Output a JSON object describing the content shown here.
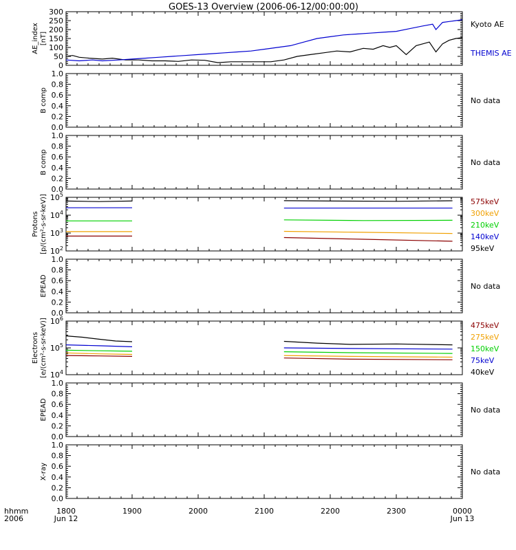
{
  "title": "GOES-13 Overview (2006-06-12/00:00:00)",
  "colors": {
    "black": "#000000",
    "blue": "#0000d0",
    "green": "#00d000",
    "orange": "#f0a000",
    "darkred": "#8b0000"
  },
  "time_axis": {
    "ticks": [
      {
        "top": "1800",
        "bottom": "Jun 12",
        "hours": 0
      },
      {
        "top": "1900",
        "bottom": "",
        "hours": 1
      },
      {
        "top": "2000",
        "bottom": "",
        "hours": 2
      },
      {
        "top": "2100",
        "bottom": "",
        "hours": 3
      },
      {
        "top": "2200",
        "bottom": "",
        "hours": 4
      },
      {
        "top": "2300",
        "bottom": "",
        "hours": 5
      },
      {
        "top": "0000",
        "bottom": "Jun 13",
        "hours": 6
      }
    ],
    "left_label_top": "hhmm",
    "left_label_bottom": "2006"
  },
  "chart_data": [
    {
      "type": "line",
      "ylabel": "AE_index [nT]",
      "ylabel_lines": [
        "AE_index",
        "[nT]"
      ],
      "ylim": [
        0,
        300
      ],
      "yticks": [
        0,
        50,
        100,
        150,
        200,
        250,
        300
      ],
      "legend": [
        "Kyoto AE",
        "THEMIS AE"
      ],
      "legend_colors": [
        "black",
        "blue"
      ],
      "series": [
        {
          "name": "Kyoto AE",
          "color": "black",
          "x": [
            0,
            0.1,
            0.2,
            0.35,
            0.55,
            0.7,
            0.9,
            1.1,
            1.3,
            1.5,
            1.7,
            1.9,
            2.1,
            2.3,
            2.5,
            2.7,
            2.9,
            3.1,
            3.3,
            3.5,
            3.7,
            3.9,
            4.1,
            4.3,
            4.5,
            4.65,
            4.8,
            4.9,
            5.0,
            5.15,
            5.3,
            5.4,
            5.5,
            5.6,
            5.7,
            5.8,
            5.9,
            6.0
          ],
          "y": [
            50,
            55,
            45,
            40,
            35,
            40,
            30,
            30,
            25,
            25,
            22,
            30,
            28,
            15,
            20,
            20,
            20,
            20,
            30,
            50,
            60,
            70,
            80,
            75,
            95,
            90,
            110,
            100,
            110,
            60,
            110,
            120,
            130,
            75,
            120,
            140,
            150,
            155
          ]
        },
        {
          "name": "THEMIS AE",
          "color": "blue",
          "x": [
            0,
            0.2,
            0.4,
            0.55,
            0.8,
            1.0,
            1.2,
            1.4,
            1.6,
            1.8,
            2.0,
            2.2,
            2.4,
            2.6,
            2.8,
            3.0,
            3.2,
            3.4,
            3.6,
            3.8,
            4.0,
            4.2,
            4.4,
            4.6,
            4.8,
            5.0,
            5.2,
            5.4,
            5.55,
            5.6,
            5.7,
            5.8,
            5.9,
            6.0
          ],
          "y": [
            30,
            25,
            30,
            25,
            30,
            35,
            40,
            45,
            50,
            55,
            60,
            65,
            70,
            75,
            80,
            90,
            100,
            110,
            130,
            150,
            160,
            170,
            175,
            180,
            185,
            190,
            205,
            220,
            230,
            200,
            240,
            245,
            250,
            255
          ]
        }
      ]
    },
    {
      "type": "line",
      "ylabel": "B comp",
      "ylabel_lines": [
        "B comp"
      ],
      "ylim": [
        0,
        1
      ],
      "yticks": [
        0.0,
        0.2,
        0.4,
        0.6,
        0.8,
        1.0
      ],
      "note": "No data",
      "series": []
    },
    {
      "type": "line",
      "ylabel": "B comp",
      "ylabel_lines": [
        "B comp"
      ],
      "ylim": [
        0,
        1
      ],
      "yticks": [
        0.0,
        0.2,
        0.4,
        0.6,
        0.8,
        1.0
      ],
      "note": "No data",
      "series": []
    },
    {
      "type": "line",
      "log": true,
      "ylabel": "Protons [p/(cm²-s-sr-keV)]",
      "ylabel_lines": [
        "Protons",
        "[p/(cm²-s-sr-keV)]"
      ],
      "ylim": [
        100,
        100000
      ],
      "ytick_labels": [
        {
          "value": 100,
          "base": "10",
          "exp": "2"
        },
        {
          "value": 1000,
          "base": "10",
          "exp": "3"
        },
        {
          "value": 10000,
          "base": "10",
          "exp": "4"
        },
        {
          "value": 100000,
          "base": "10",
          "exp": "5"
        }
      ],
      "legend": [
        "575keV",
        "300keV",
        "210keV",
        "140keV",
        "95keV"
      ],
      "legend_colors": [
        "darkred",
        "orange",
        "green",
        "blue",
        "black"
      ],
      "series": [
        {
          "name": "95keV",
          "color": "black",
          "segments": [
            {
              "x": [
                0,
                0.5,
                1.0
              ],
              "y": [
                62000,
                58000,
                62000
              ]
            },
            {
              "x": [
                3.3,
                4.0,
                5.0,
                5.85
              ],
              "y": [
                65000,
                62000,
                60000,
                64000
              ]
            }
          ]
        },
        {
          "name": "140keV",
          "color": "blue",
          "segments": [
            {
              "x": [
                0,
                1.0
              ],
              "y": [
                26000,
                26000
              ]
            },
            {
              "x": [
                3.3,
                5.85
              ],
              "y": [
                25000,
                25000
              ]
            }
          ]
        },
        {
          "name": "210keV",
          "color": "green",
          "segments": [
            {
              "x": [
                0,
                1.0
              ],
              "y": [
                4800,
                4800
              ]
            },
            {
              "x": [
                3.3,
                4.5,
                5.85
              ],
              "y": [
                5500,
                5000,
                5200
              ]
            }
          ]
        },
        {
          "name": "300keV",
          "color": "orange",
          "segments": [
            {
              "x": [
                0,
                1.0
              ],
              "y": [
                1200,
                1200
              ]
            },
            {
              "x": [
                3.3,
                4.5,
                5.85
              ],
              "y": [
                1250,
                1100,
                950
              ]
            }
          ]
        },
        {
          "name": "575keV",
          "color": "darkred",
          "segments": [
            {
              "x": [
                0,
                1.0
              ],
              "y": [
                680,
                680
              ]
            },
            {
              "x": [
                3.3,
                4.5,
                5.85
              ],
              "y": [
                560,
                450,
                350
              ]
            }
          ]
        }
      ]
    },
    {
      "type": "line",
      "ylabel": "EPEAD",
      "ylabel_lines": [
        "EPEAD"
      ],
      "ylim": [
        0,
        1
      ],
      "yticks": [
        0.0,
        0.2,
        0.4,
        0.6,
        0.8,
        1.0
      ],
      "note": "No data",
      "series": []
    },
    {
      "type": "line",
      "log": true,
      "ylabel": "Electrons [e/(cm²-s-sr-keV)]",
      "ylabel_lines": [
        "Electrons",
        "[e/(cm²-s-sr-keV)]"
      ],
      "ylim": [
        10000,
        1000000
      ],
      "ytick_labels": [
        {
          "value": 10000,
          "base": "10",
          "exp": "4"
        },
        {
          "value": 100000,
          "base": "10",
          "exp": "5"
        },
        {
          "value": 1000000,
          "base": "10",
          "exp": "6"
        }
      ],
      "legend": [
        "475keV",
        "275keV",
        "150keV",
        "75keV",
        "40keV"
      ],
      "legend_colors": [
        "darkred",
        "orange",
        "green",
        "blue",
        "black"
      ],
      "series": [
        {
          "name": "40keV",
          "color": "black",
          "segments": [
            {
              "x": [
                0,
                0.25,
                0.5,
                0.75,
                1.0
              ],
              "y": [
                280000,
                250000,
                210000,
                180000,
                170000
              ]
            },
            {
              "x": [
                3.3,
                3.8,
                4.3,
                5.0,
                5.85
              ],
              "y": [
                175000,
                150000,
                135000,
                140000,
                130000
              ]
            }
          ]
        },
        {
          "name": "75keV",
          "color": "blue",
          "segments": [
            {
              "x": [
                0,
                0.5,
                1.0
              ],
              "y": [
                130000,
                120000,
                110000
              ]
            },
            {
              "x": [
                3.3,
                4.3,
                5.85
              ],
              "y": [
                100000,
                95000,
                90000
              ]
            }
          ]
        },
        {
          "name": "150keV",
          "color": "green",
          "segments": [
            {
              "x": [
                0,
                0.5,
                1.0
              ],
              "y": [
                82000,
                78000,
                75000
              ]
            },
            {
              "x": [
                3.3,
                4.3,
                5.85
              ],
              "y": [
                72000,
                66000,
                62000
              ]
            }
          ]
        },
        {
          "name": "275keV",
          "color": "orange",
          "segments": [
            {
              "x": [
                0,
                0.5,
                1.0
              ],
              "y": [
                65000,
                60000,
                57000
              ]
            },
            {
              "x": [
                3.3,
                4.3,
                5.85
              ],
              "y": [
                52000,
                48000,
                45000
              ]
            }
          ]
        },
        {
          "name": "475keV",
          "color": "darkred",
          "segments": [
            {
              "x": [
                0,
                0.5,
                1.0
              ],
              "y": [
                52000,
                50000,
                48000
              ]
            },
            {
              "x": [
                3.3,
                4.3,
                5.85
              ],
              "y": [
                42000,
                38000,
                36000
              ]
            }
          ]
        }
      ]
    },
    {
      "type": "line",
      "ylabel": "EPEAD",
      "ylabel_lines": [
        "EPEAD"
      ],
      "ylim": [
        0,
        1
      ],
      "yticks": [
        0.0,
        0.2,
        0.4,
        0.6,
        0.8,
        1.0
      ],
      "note": "No data",
      "series": []
    },
    {
      "type": "line",
      "ylabel": "X-ray",
      "ylabel_lines": [
        "X-ray"
      ],
      "ylim": [
        0,
        1
      ],
      "yticks": [
        0.0,
        0.2,
        0.4,
        0.6,
        0.8,
        1.0
      ],
      "note": "No data",
      "series": []
    }
  ]
}
